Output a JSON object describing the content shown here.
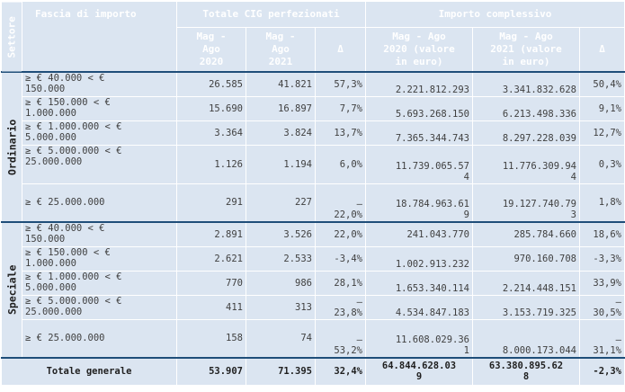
{
  "header": {
    "settore": "Settore",
    "fascia": "Fascia di importo",
    "totale_cig": "Totale CIG perfezionati",
    "importo": "Importo complessivo",
    "mag_ago_2020": "Mag -\nAgo\n2020",
    "mag_ago_2021": "Mag -\nAgo\n2021",
    "delta": "Δ",
    "importo_2020": "Mag - Ago\n2020 (valore\nin euro)",
    "importo_2021": "Mag - Ago\n2021 (valore\nin euro)",
    "delta2": "Δ"
  },
  "sectors": {
    "ordinario": "Ordinario",
    "speciale": "Speciale"
  },
  "rows": [
    {
      "band": "≥ € 40.000 < €\n150.000",
      "cig2020": "26.585",
      "cig2021": "41.821",
      "delta_cig": "57,3%",
      "imp2020": "2.221.812.293",
      "imp2021": "3.341.832.628",
      "delta_imp": "50,4%"
    },
    {
      "band": "≥ € 150.000 < €\n1.000.000",
      "cig2020": "15.690",
      "cig2021": "16.897",
      "delta_cig": "7,7%",
      "imp2020": "5.693.268.150",
      "imp2021": "6.213.498.336",
      "delta_imp": "9,1%"
    },
    {
      "band": "≥ € 1.000.000 < €\n5.000.000",
      "cig2020": "3.364",
      "cig2021": "3.824",
      "delta_cig": "13,7%",
      "imp2020": "7.365.344.743",
      "imp2021": "8.297.228.039",
      "delta_imp": "12,7%"
    },
    {
      "band": "≥ € 5.000.000 < €\n25.000.000",
      "cig2020": "1.126",
      "cig2021": "1.194",
      "delta_cig": "6,0%",
      "imp2020": "11.739.065.57\n4",
      "imp2021": "11.776.309.94\n4",
      "delta_imp": "0,3%"
    },
    {
      "band": "≥ € 25.000.000",
      "cig2020": "291",
      "cig2021": "227",
      "delta_cig": "–\n22,0%",
      "imp2020": "18.784.963.61\n9",
      "imp2021": "19.127.740.79\n3",
      "delta_imp": "1,8%"
    },
    {
      "band": "≥ € 40.000 < €\n150.000",
      "cig2020": "2.891",
      "cig2021": "3.526",
      "delta_cig": "22,0%",
      "imp2020": "241.043.770",
      "imp2021": "285.784.660",
      "delta_imp": "18,6%"
    },
    {
      "band": "≥ € 150.000 < €\n1.000.000",
      "cig2020": "2.621",
      "cig2021": "2.533",
      "delta_cig": "-3,4%",
      "imp2020": "1.002.913.232",
      "imp2021": "970.160.708",
      "delta_imp": "-3,3%"
    },
    {
      "band": "≥ € 1.000.000 < €\n5.000.000",
      "cig2020": "770",
      "cig2021": "986",
      "delta_cig": "28,1%",
      "imp2020": "1.653.340.114",
      "imp2021": "2.214.448.151",
      "delta_imp": "33,9%"
    },
    {
      "band": "≥ € 5.000.000 < €\n25.000.000",
      "cig2020": "411",
      "cig2021": "313",
      "delta_cig": "–\n23,8%",
      "imp2020": "4.534.847.183",
      "imp2021": "3.153.719.325",
      "delta_imp": "–\n30,5%"
    },
    {
      "band": "≥ € 25.000.000",
      "cig2020": "158",
      "cig2021": "74",
      "delta_cig": "–\n53,2%",
      "imp2020": "11.608.029.36\n1",
      "imp2021": "8.000.173.044",
      "delta_imp": "–\n31,1%"
    }
  ],
  "total": {
    "label": "Totale generale",
    "cig2020": "53.907",
    "cig2021": "71.395",
    "delta_cig": "32,4%",
    "imp2020": "64.844.628.03\n9",
    "imp2021": "63.380.895.62\n8",
    "delta_imp": "-2,3%"
  },
  "colors": {
    "header_bg": "#1f4e79",
    "cell_bg": "#dbe5f1"
  }
}
